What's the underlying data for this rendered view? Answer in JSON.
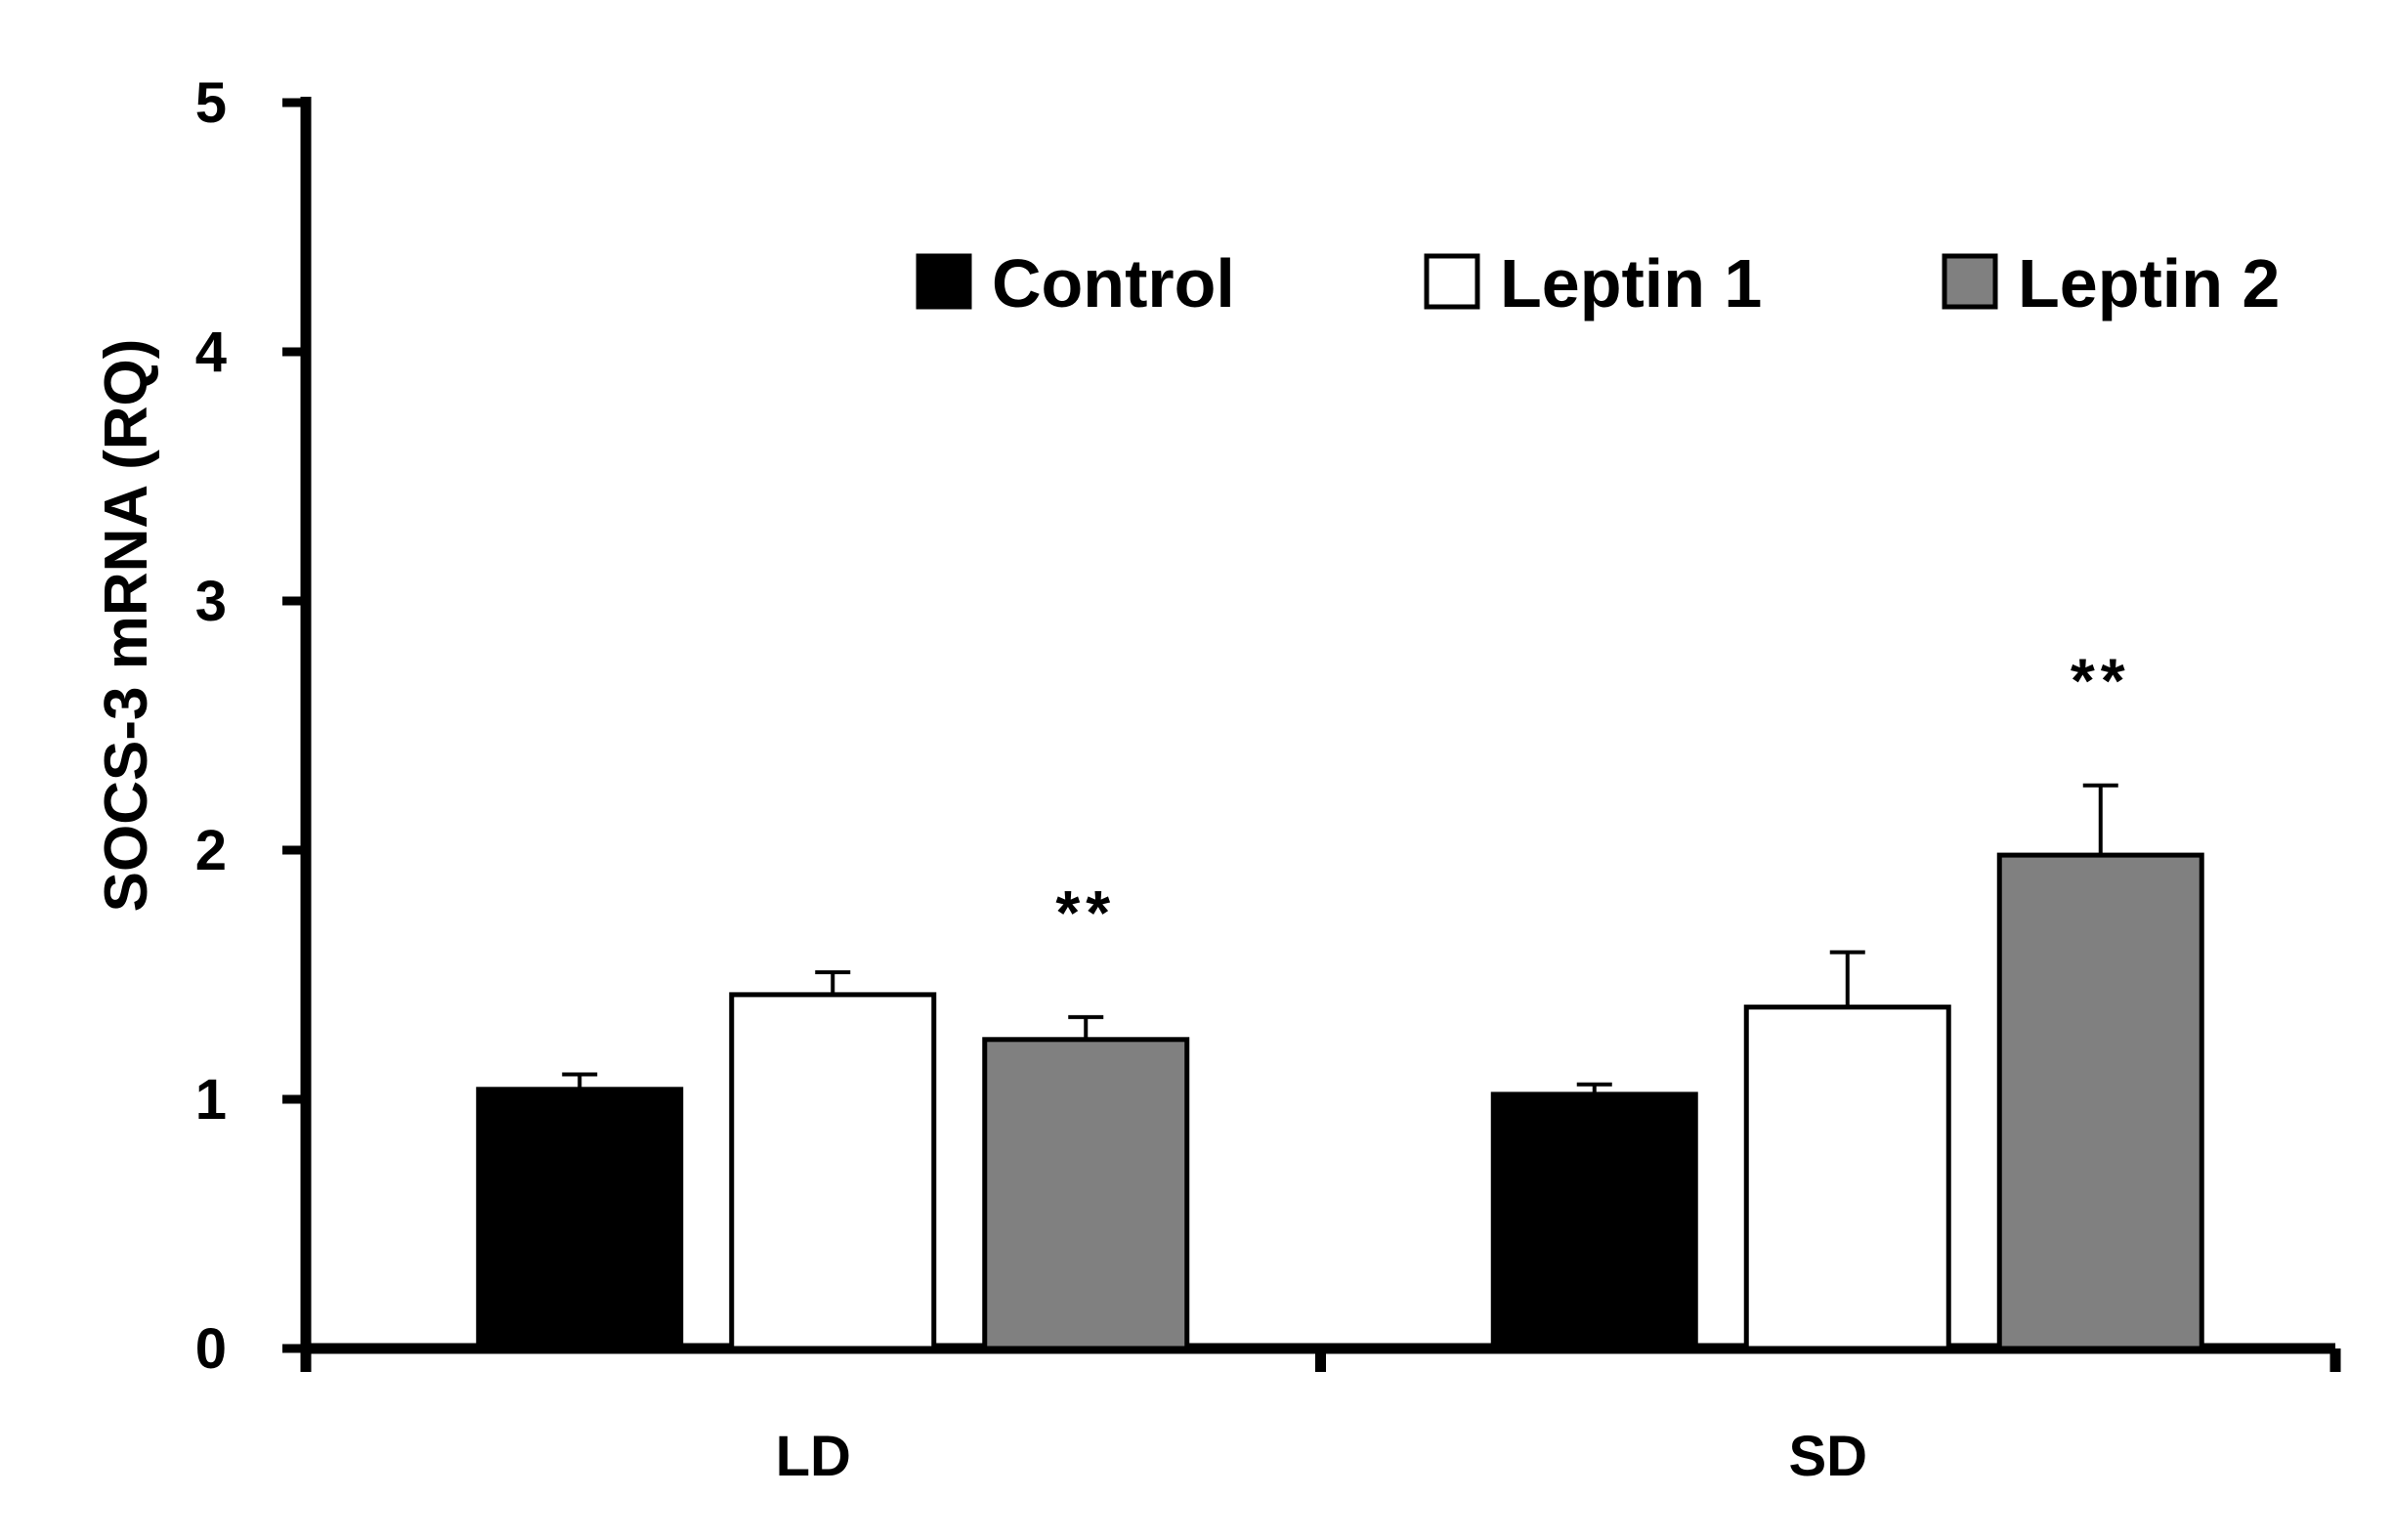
{
  "chart_data": {
    "type": "bar",
    "title": "",
    "xlabel": "",
    "ylabel": "SOCS-3 mRNA (RQ)",
    "ylim": [
      0,
      5
    ],
    "yticks": [
      0,
      1,
      2,
      3,
      4,
      5
    ],
    "categories": [
      "LD",
      "SD"
    ],
    "series": [
      {
        "name": "Control",
        "color": "#000000",
        "values": [
          1.04,
          1.02
        ],
        "errors": [
          0.06,
          0.04
        ]
      },
      {
        "name": "Leptin 1",
        "color": "#ffffff",
        "values": [
          1.42,
          1.37
        ],
        "errors": [
          0.09,
          0.22
        ]
      },
      {
        "name": "Leptin 2",
        "color": "#808080",
        "values": [
          1.24,
          1.98
        ],
        "errors": [
          0.09,
          0.28
        ]
      }
    ],
    "annotations": [
      {
        "category": "LD",
        "series": "Leptin 2",
        "text": "**"
      },
      {
        "category": "SD",
        "series": "Leptin 2",
        "text": "**"
      }
    ],
    "legend_position": "top-right",
    "grid": false
  }
}
